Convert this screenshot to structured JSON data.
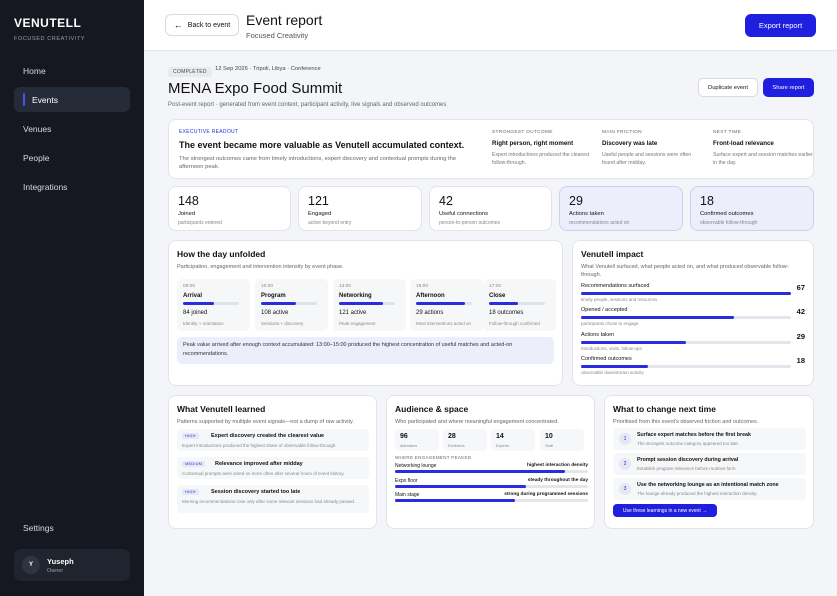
{
  "sidebar": {
    "brand": "VENUTELL",
    "tagline": "FOCUSED CREATIVITY",
    "items": [
      {
        "label": "Home"
      },
      {
        "label": "Events"
      },
      {
        "label": "Venues"
      },
      {
        "label": "People"
      },
      {
        "label": "Integrations"
      }
    ],
    "settings": "Settings",
    "user": {
      "initial": "Y",
      "name": "Yuseph",
      "role": "Owner"
    }
  },
  "header": {
    "back_label": "Back to event",
    "title": "Event report",
    "subtitle": "Focused Creativity",
    "export_label": "Export report"
  },
  "event": {
    "status": "COMPLETED",
    "meta": "12 Sep 2026 · Tripoli, Libya · Conference",
    "title": "MENA Expo Food Summit",
    "subtitle": "Post-event report · generated from event context, participant activity, live signals and observed outcomes",
    "duplicate_label": "Duplicate event",
    "share_label": "Share report"
  },
  "executive": {
    "label": "EXECUTIVE READOUT",
    "headline": "The event became more valuable as Venutell accumulated context.",
    "text": "The strongest outcomes came from timely introductions, expert discovery and contextual prompts during the afternoon peak.",
    "columns": [
      {
        "key": "STRONGEST OUTCOME",
        "value": "Right person, right moment",
        "desc": "Expert introductions produced the clearest follow-through."
      },
      {
        "key": "MAIN FRICTION",
        "value": "Discovery was late",
        "desc": "Useful people and sessions were often found after midday."
      },
      {
        "key": "NEXT TIME",
        "value": "Front-load relevance",
        "desc": "Surface expert and session matches earlier in the day."
      }
    ]
  },
  "kpis": [
    {
      "value": "148",
      "label": "Joined",
      "sub": "participants entered"
    },
    {
      "value": "121",
      "label": "Engaged",
      "sub": "active beyond entry"
    },
    {
      "value": "42",
      "label": "Useful connections",
      "sub": "person-to-person outcomes"
    },
    {
      "value": "29",
      "label": "Actions taken",
      "sub": "recommendations acted on"
    },
    {
      "value": "18",
      "label": "Confirmed outcomes",
      "sub": "observable follow-through"
    }
  ],
  "day": {
    "title": "How the day unfolded",
    "subtitle": "Participation, engagement and intervention intensity by event phase.",
    "phases": [
      {
        "time": "09:00",
        "name": "Arrival",
        "value": "84 joined",
        "desc": "Identity + orientation",
        "level": 0.55
      },
      {
        "time": "10:30",
        "name": "Program",
        "value": "108 active",
        "desc": "Sessions + discovery",
        "level": 0.62
      },
      {
        "time": "13:00",
        "name": "Networking",
        "value": "121 active",
        "desc": "Peak engagement",
        "level": 0.78
      },
      {
        "time": "15:00",
        "name": "Afternoon",
        "value": "29 actions",
        "desc": "Most interventions acted on",
        "level": 0.88
      },
      {
        "time": "17:00",
        "name": "Close",
        "value": "18 outcomes",
        "desc": "Follow-through confirmed",
        "level": 0.52
      }
    ],
    "peak_note": "Peak value arrived after enough context accumulated: 13:00–15:00 produced the highest concentration of useful matches and acted-on recommendations."
  },
  "impact": {
    "title": "Venutell impact",
    "subtitle": "What Venutell surfaced, what people acted on, and what produced observable follow-through.",
    "rows": [
      {
        "label": "Recommendations surfaced",
        "value": "67",
        "desc": "timely people, sessions and resources",
        "level": 1.0
      },
      {
        "label": "Opened / accepted",
        "value": "42",
        "desc": "participants chose to engage",
        "level": 0.73
      },
      {
        "label": "Actions taken",
        "value": "29",
        "desc": "introductions, visits, follow-ups",
        "level": 0.5
      },
      {
        "label": "Confirmed outcomes",
        "value": "18",
        "desc": "observable downstream activity",
        "level": 0.32
      }
    ]
  },
  "learned": {
    "title": "What Venutell learned",
    "subtitle": "Patterns supported by multiple event signals—not a dump of raw activity.",
    "items": [
      {
        "badge": "HIGH",
        "heading": "Expert discovery created the clearest value",
        "desc": "Expert introductions produced the highest share of observable follow-through."
      },
      {
        "badge": "MEDIUM",
        "heading": "Relevance improved after midday",
        "desc": "Contextual prompts were acted on more often after several hours of event history."
      },
      {
        "badge": "HIGH",
        "heading": "Session discovery started too late",
        "desc": "Morning recommendations rose only after some relevant sessions had already passed."
      }
    ]
  },
  "audience": {
    "title": "Audience & space",
    "subtitle": "Who participated and where meaningful engagement concentrated.",
    "stats": [
      {
        "value": "96",
        "label": "Attendees"
      },
      {
        "value": "28",
        "label": "Exhibitors"
      },
      {
        "value": "14",
        "label": "Experts"
      },
      {
        "value": "10",
        "label": "Staff"
      }
    ],
    "zone_heading": "WHERE ENGAGEMENT PEAKED",
    "zones": [
      {
        "name": "Networking lounge",
        "value": "highest interaction density",
        "level": 0.88
      },
      {
        "name": "Expo floor",
        "value": "steady throughout the day",
        "level": 0.68
      },
      {
        "name": "Main stage",
        "value": "strong during programmed sessions",
        "level": 0.62
      }
    ]
  },
  "change": {
    "title": "What to change next time",
    "subtitle": "Prioritised from this event's observed friction and outcomes.",
    "steps": [
      {
        "num": "1",
        "heading": "Surface expert matches before the first break",
        "desc": "The strongest outcome category appeared too late."
      },
      {
        "num": "2",
        "heading": "Prompt session discovery during arrival",
        "desc": "Establish program relevance before routines form."
      },
      {
        "num": "3",
        "heading": "Use the networking lounge as an intentional match zone",
        "desc": "The lounge already produced the highest interaction density."
      }
    ],
    "button_label": "Use these learnings in a new event →"
  },
  "colors": {
    "accent": "#1f1fe0",
    "sidebar": "#151821",
    "highlight": "#eceefb"
  }
}
